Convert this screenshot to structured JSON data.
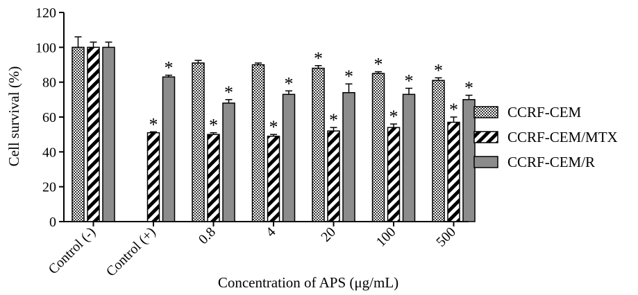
{
  "chart_data": {
    "type": "bar",
    "title": "",
    "xlabel": "Concentration of APS (μg/mL)",
    "ylabel": "Cell survival (%)",
    "ylim": [
      0,
      120
    ],
    "yticks": [
      0,
      20,
      40,
      60,
      80,
      100,
      120
    ],
    "categories": [
      "Control (-)",
      "Control (+)",
      "0.8",
      "4",
      "20",
      "100",
      "500"
    ],
    "significance_marker": "*",
    "legend_position": "right",
    "series": [
      {
        "name": "CCRF-CEM",
        "pattern": "checkered",
        "values": [
          100,
          null,
          91,
          90,
          88,
          85,
          81
        ],
        "errors": [
          6,
          null,
          1.5,
          1,
          1.5,
          1,
          1.5
        ],
        "significant": [
          false,
          false,
          false,
          false,
          true,
          true,
          true
        ]
      },
      {
        "name": "CCRF-CEM/MTX",
        "pattern": "diagonal-stripes",
        "values": [
          100,
          51,
          50,
          49,
          52,
          54,
          57
        ],
        "errors": [
          3,
          0.5,
          1,
          1,
          2,
          2,
          3
        ],
        "significant": [
          false,
          true,
          true,
          true,
          true,
          true,
          true
        ]
      },
      {
        "name": "CCRF-CEM/R",
        "pattern": "solid",
        "color": "#8c8c8c",
        "values": [
          100,
          83,
          68,
          73,
          74,
          73,
          70
        ],
        "errors": [
          3,
          1,
          2,
          2,
          5,
          3.5,
          2.5
        ],
        "significant": [
          false,
          true,
          true,
          true,
          true,
          true,
          true
        ]
      }
    ]
  }
}
